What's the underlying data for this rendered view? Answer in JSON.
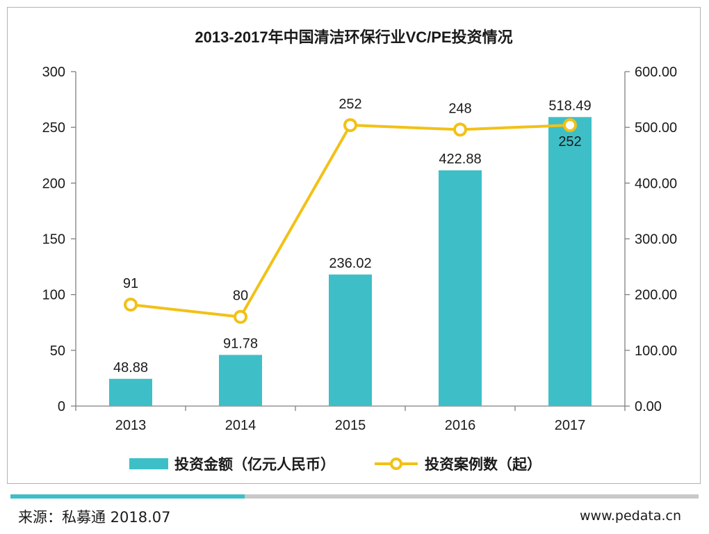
{
  "chart_data": {
    "type": "bar",
    "title": "2013-2017年中国清洁环保行业VC/PE投资情况",
    "categories": [
      "2013",
      "2014",
      "2015",
      "2016",
      "2017"
    ],
    "series": [
      {
        "name": "投资金额（亿元人民币）",
        "type": "bar",
        "axis": "right",
        "values": [
          48.88,
          91.78,
          236.02,
          422.88,
          518.49
        ],
        "labels": [
          "48.88",
          "91.78",
          "236.02",
          "422.88",
          "518.49"
        ],
        "color": "#3ebfc7"
      },
      {
        "name": "投资案例数（起）",
        "type": "line",
        "axis": "left",
        "values": [
          91,
          80,
          252,
          248,
          252
        ],
        "labels": [
          "91",
          "80",
          "252",
          "248",
          "252"
        ],
        "color": "#f2c116"
      }
    ],
    "y_left": {
      "min": 0,
      "max": 300,
      "step": 50,
      "ticks": [
        "0",
        "50",
        "100",
        "150",
        "200",
        "250",
        "300"
      ]
    },
    "y_right": {
      "min": 0,
      "max": 600,
      "step": 100,
      "ticks": [
        "0.00",
        "100.00",
        "200.00",
        "300.00",
        "400.00",
        "500.00",
        "600.00"
      ]
    },
    "grid": false,
    "legend": "bottom"
  },
  "footer": {
    "source": "来源：私募通 2018.07",
    "site": "www.pedata.cn",
    "progress": 0.34
  },
  "colors": {
    "bar": "#3ebfc7",
    "line": "#f2c116",
    "axis": "#7f7f7f",
    "text": "#1a1a1a"
  }
}
